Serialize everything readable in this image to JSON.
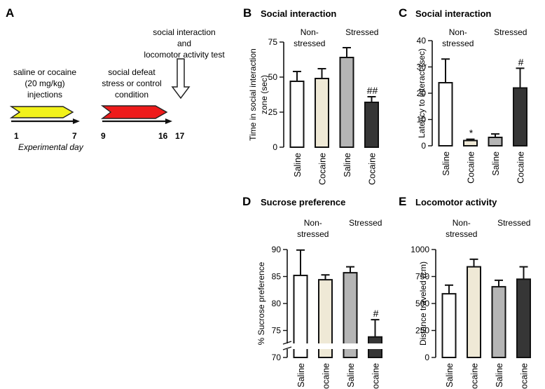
{
  "colors": {
    "saline_ns": "#ffffff",
    "cocaine_ns": "#efe9d6",
    "saline_s": "#b5b5b5",
    "cocaine_s": "#363636",
    "yellow": "#f2f21a",
    "red": "#ee1b1b"
  },
  "panel_a": {
    "letter": "A",
    "top_label": [
      "social interaction",
      "and",
      "locomotor activity test"
    ],
    "injection_label": [
      "saline or cocaine",
      "(20 mg/kg)",
      "injections"
    ],
    "stress_label": [
      "social defeat",
      "stress or control",
      "condition"
    ],
    "days": [
      "1",
      "7",
      "9",
      "16",
      "17"
    ],
    "axis_caption": "Experimental day"
  },
  "chart_data": [
    {
      "id": "B",
      "letter": "B",
      "type": "bar",
      "title": "Social interaction",
      "ylabel": [
        "Time in social interaction",
        "zone (sec)"
      ],
      "ylim": [
        0,
        75
      ],
      "yticks": [
        0,
        25,
        50,
        75
      ],
      "group_labels": {
        "left": [
          "Non-",
          "stressed"
        ],
        "right": [
          "Stressed"
        ]
      },
      "categories": [
        "Saline",
        "Cocaine",
        "Saline",
        "Cocaine"
      ],
      "values": [
        47,
        49,
        64,
        32
      ],
      "errors": [
        7,
        7,
        7,
        4
      ],
      "sig": [
        "",
        "",
        "",
        "##"
      ]
    },
    {
      "id": "C",
      "letter": "C",
      "type": "bar",
      "title": "Social interaction",
      "ylabel": [
        "Latency to interact (sec)"
      ],
      "ylim": [
        0,
        40
      ],
      "yticks": [
        0,
        10,
        20,
        30,
        40
      ],
      "group_labels": {
        "left": [
          "Non-",
          "stressed"
        ],
        "right": [
          "Stressed"
        ]
      },
      "categories": [
        "Saline",
        "Cocaine",
        "Saline",
        "Cocaine"
      ],
      "values": [
        24,
        2,
        3.2,
        22
      ],
      "errors": [
        9,
        0.5,
        1.3,
        7.5
      ],
      "sig": [
        "",
        "*",
        "",
        "#"
      ]
    },
    {
      "id": "D",
      "letter": "D",
      "type": "bar",
      "title": "Sucrose preference",
      "ylabel": [
        "% Sucrose preference"
      ],
      "ylim": [
        70,
        90
      ],
      "yticks": [
        70,
        75,
        80,
        85,
        90
      ],
      "axis_break": true,
      "group_labels": {
        "left": [
          "Non-",
          "stressed"
        ],
        "right": [
          "Stressed"
        ]
      },
      "categories": [
        "Saline",
        "Cocaine",
        "Saline",
        "Cocaine"
      ],
      "values": [
        85.2,
        84.4,
        85.7,
        73.8
      ],
      "errors": [
        4.7,
        0.9,
        1.1,
        3.2
      ],
      "sig": [
        "",
        "",
        "",
        "#"
      ]
    },
    {
      "id": "E",
      "letter": "E",
      "type": "bar",
      "title": "Locomotor activity",
      "ylabel": [
        "Distance traveled (cm)"
      ],
      "ylim": [
        0,
        1000
      ],
      "yticks": [
        0,
        250,
        500,
        750,
        1000
      ],
      "group_labels": {
        "left": [
          "Non-",
          "stressed"
        ],
        "right": [
          "Stressed"
        ]
      },
      "categories": [
        "Saline",
        "Cocaine",
        "Saline",
        "Cocaine"
      ],
      "values": [
        590,
        840,
        655,
        725
      ],
      "errors": [
        80,
        70,
        60,
        115
      ],
      "sig": [
        "",
        "",
        "",
        ""
      ]
    }
  ]
}
